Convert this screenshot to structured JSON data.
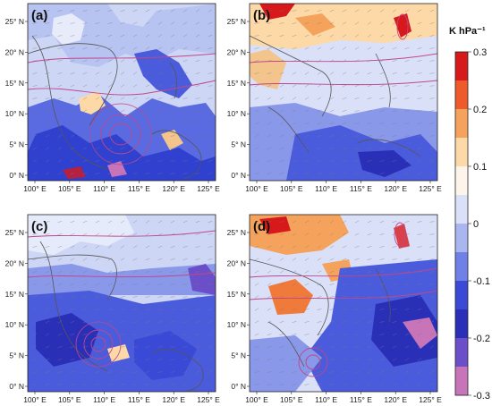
{
  "figure": {
    "panels": [
      {
        "id": "a",
        "label": "(a)"
      },
      {
        "id": "b",
        "label": "(b)"
      },
      {
        "id": "c",
        "label": "(c)"
      },
      {
        "id": "d",
        "label": "(d)"
      }
    ],
    "x_ticks": [
      "100° E",
      "105° E",
      "110° E",
      "115° E",
      "120° E",
      "125° E"
    ],
    "y_ticks": [
      "25° N",
      "20° N",
      "15° N",
      "10° N",
      "5° N",
      "0° N"
    ]
  },
  "colorbar": {
    "title": "K hPa⁻¹",
    "labels": [
      "0.3",
      "0.2",
      "0.1",
      "0",
      "-0.1",
      "-0.2",
      "-0.3"
    ],
    "colors": [
      "#d7191c",
      "#ef5a2a",
      "#f5a35c",
      "#fdd9a8",
      "#fdf4ea",
      "#d9e0f8",
      "#a9b6f0",
      "#6f80e6",
      "#3a49d6",
      "#2a2fb8",
      "#6b4fc8",
      "#c774b8"
    ],
    "value_range": [
      -0.3,
      0.3
    ]
  },
  "legend_colors": {
    "land_outline": "#555555",
    "contour": "#c0468c",
    "wind_vector": "#7a7a7a"
  }
}
